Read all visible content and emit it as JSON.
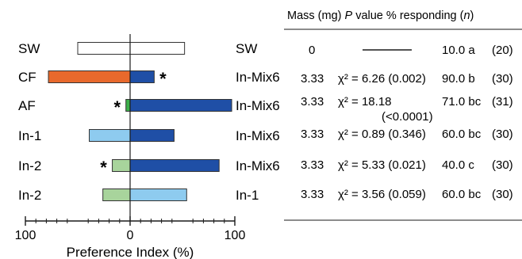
{
  "chart_data": {
    "type": "bar",
    "orientation": "horizontal",
    "layout": "diverging",
    "xlabel": "Preference Index (%)",
    "xlim": [
      -100,
      100
    ],
    "x_tick_labels": [
      "100",
      "0",
      "100"
    ],
    "grid": false,
    "colors": {
      "sw": "#ffffff",
      "cf": "#e8692c",
      "af": "#3db04a",
      "in_1": "#8ecbef",
      "in_2": "#a8d49c",
      "in_mix6": "#1f4fa6",
      "outline": "#333333"
    },
    "rows": [
      {
        "left_label": "SW",
        "left_value": -50,
        "left_color": "sw",
        "right_label": "SW",
        "right_value": 52,
        "right_color": "sw",
        "star": "",
        "star_side": ""
      },
      {
        "left_label": "CF",
        "left_value": -78,
        "left_color": "cf",
        "right_label": "In-Mix6",
        "right_value": 23,
        "right_color": "in_mix6",
        "star": "*",
        "star_side": "right"
      },
      {
        "left_label": "AF",
        "left_value": -4,
        "left_color": "af",
        "right_label": "In-Mix6",
        "right_value": 97,
        "right_color": "in_mix6",
        "star": "*",
        "star_side": "left"
      },
      {
        "left_label": "In-1",
        "left_value": -39,
        "left_color": "in_1",
        "right_label": "In-Mix6",
        "right_value": 42,
        "right_color": "in_mix6",
        "star": "",
        "star_side": ""
      },
      {
        "left_label": "In-2",
        "left_value": -17,
        "left_color": "in_2",
        "right_label": "In-Mix6",
        "right_value": 85,
        "right_color": "in_mix6",
        "star": "*",
        "star_side": "left"
      },
      {
        "left_label": "In-2",
        "left_value": -26,
        "left_color": "in_2",
        "right_label": "In-1",
        "right_value": 54,
        "right_color": "in_1",
        "star": "",
        "star_side": ""
      }
    ],
    "table": {
      "header": {
        "mass": "Mass (mg)",
        "p": "P",
        "p_suffix": " value",
        "resp": "% responding (",
        "n": "n",
        "close": ")"
      },
      "rows": [
        {
          "mass": "0",
          "chi": "",
          "chi_sub": "",
          "dash": true,
          "resp": "10.0 a",
          "n": "(20)"
        },
        {
          "mass": "3.33",
          "chi": "χ² = 6.26 (0.002)",
          "chi_sub": "",
          "dash": false,
          "resp": "90.0 b",
          "n": "(30)"
        },
        {
          "mass": "3.33",
          "chi": "χ² = 18.18",
          "chi_sub": "(<0.0001)",
          "dash": false,
          "resp": "71.0 bc",
          "n": "(31)"
        },
        {
          "mass": "3.33",
          "chi": "χ² = 0.89 (0.346)",
          "chi_sub": "",
          "dash": false,
          "resp": "60.0 bc",
          "n": "(30)"
        },
        {
          "mass": "3.33",
          "chi": "χ² = 5.33 (0.021)",
          "chi_sub": "",
          "dash": false,
          "resp": "40.0 c",
          "n": "(30)"
        },
        {
          "mass": "3.33",
          "chi": "χ² = 3.56 (0.059)",
          "chi_sub": "",
          "dash": false,
          "resp": "60.0 bc",
          "n": "(30)"
        }
      ]
    }
  }
}
